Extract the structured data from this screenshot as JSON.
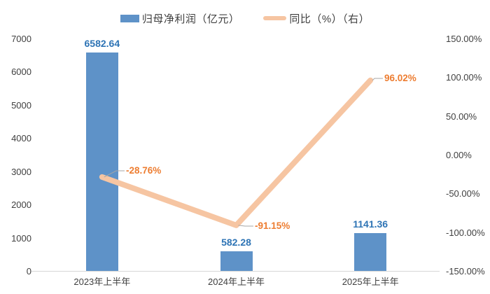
{
  "chart_data": {
    "type": "bar",
    "subtype": "combo-bar-line",
    "title": "",
    "categories": [
      "2023年上半年",
      "2024年上半年",
      "2025年上半年"
    ],
    "series": [
      {
        "name": "归母净利润（亿元）",
        "type": "bar",
        "axis": "left",
        "values": [
          6582.64,
          582.28,
          1141.36
        ],
        "labels": [
          "6582.64",
          "582.28",
          "1141.36"
        ],
        "color": "#5E92C8",
        "label_color": "#2E74B5"
      },
      {
        "name": "同比（%）（右）",
        "type": "line",
        "axis": "right",
        "values": [
          -28.76,
          -91.15,
          96.02
        ],
        "labels": [
          "-28.76%",
          "-91.15%",
          "96.02%"
        ],
        "color": "#F6C5A2",
        "label_color": "#ED7D31"
      }
    ],
    "left_axis": {
      "min": 0,
      "max": 7000,
      "step": 1000,
      "ticks": [
        "7000",
        "6000",
        "5000",
        "4000",
        "3000",
        "2000",
        "1000",
        "0"
      ]
    },
    "right_axis": {
      "min": -150,
      "max": 150,
      "step": 50,
      "ticks": [
        "150.00%",
        "100.00%",
        "50.00%",
        "0.00%",
        "-50.00%",
        "-100.00%",
        "-150.00%"
      ]
    },
    "grid": false,
    "legend_position": "top"
  },
  "colors": {
    "background": "#ffffff",
    "axis_text": "#404040",
    "legend_text": "#3f3f3f",
    "axis_line": "#d6d6d6",
    "leader_line": "#a6a6a6"
  }
}
